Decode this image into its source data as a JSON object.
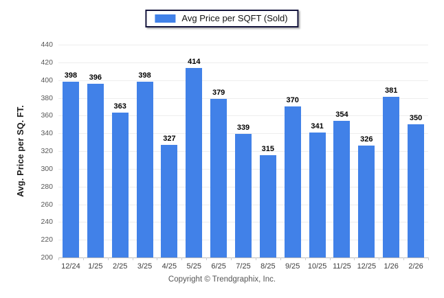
{
  "legend": {
    "label": "Avg Price per SQFT (Sold)"
  },
  "footer": {
    "text": "Copyright © Trendgraphix, Inc."
  },
  "colors": {
    "bar": "#4181e8",
    "legend_border": "#14143c",
    "gridline": "#ededed",
    "baseline": "#bdbdbd"
  },
  "chart_data": {
    "type": "bar",
    "title": "",
    "xlabel": "",
    "ylabel": "Avg. Price per SQ. FT.",
    "series_name": "Avg Price per SQFT (Sold)",
    "categories": [
      "12/24",
      "1/25",
      "2/25",
      "3/25",
      "4/25",
      "5/25",
      "6/25",
      "7/25",
      "8/25",
      "9/25",
      "10/25",
      "11/25",
      "12/25",
      "1/26",
      "2/26"
    ],
    "values": [
      398,
      396,
      363,
      398,
      327,
      414,
      379,
      339,
      315,
      370,
      341,
      354,
      326,
      381,
      350
    ],
    "ylim": [
      200,
      440
    ],
    "ytick_step": 20,
    "grid": true,
    "data_labels": true,
    "legend_position": "top center",
    "bar_color": "#4181e8"
  }
}
